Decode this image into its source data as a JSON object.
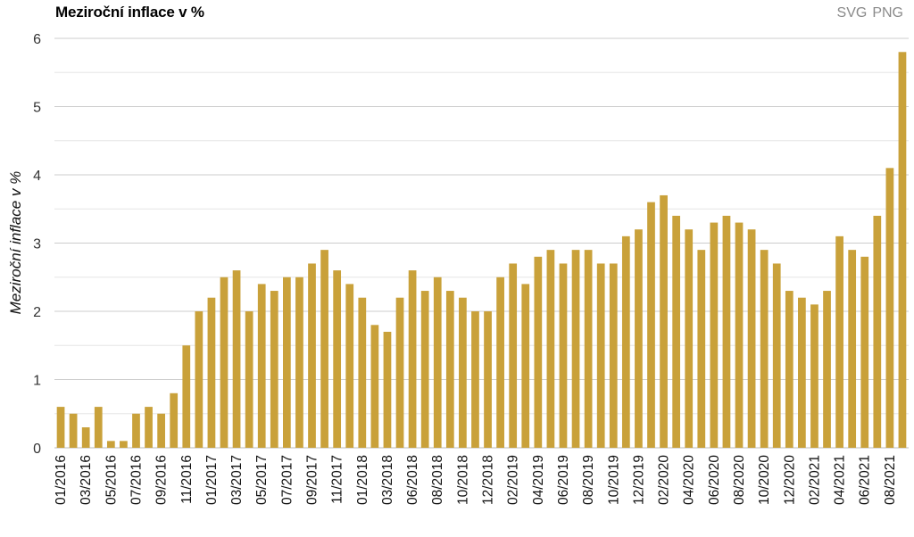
{
  "title": "Meziroční inflace v %",
  "export": {
    "svg_label": "SVG",
    "png_label": "PNG"
  },
  "colors": {
    "bar": "#C9A13A",
    "grid": "#cccccc",
    "minor_grid": "#e6e6e6"
  },
  "chart_data": {
    "type": "bar",
    "ylabel": "Meziroční inflace v %",
    "ylim": [
      0,
      6
    ],
    "yticks": [
      0,
      1,
      2,
      3,
      4,
      5,
      6
    ],
    "grid": true,
    "x_tick_labels": [
      "01/2016",
      "03/2016",
      "05/2016",
      "07/2016",
      "09/2016",
      "11/2016",
      "01/2017",
      "03/2017",
      "05/2017",
      "07/2017",
      "09/2017",
      "11/2017",
      "01/2018",
      "03/2018",
      "06/2018",
      "08/2018",
      "10/2018",
      "12/2018",
      "02/2019",
      "04/2019",
      "06/2019",
      "08/2019",
      "10/2019",
      "12/2019",
      "02/2020",
      "04/2020",
      "06/2020",
      "08/2020",
      "10/2020",
      "12/2020",
      "02/2021",
      "04/2021",
      "06/2021",
      "08/2021"
    ],
    "x_tick_bar_index": [
      0,
      2,
      4,
      6,
      8,
      10,
      12,
      14,
      16,
      18,
      20,
      22,
      24,
      26,
      28,
      30,
      32,
      34,
      36,
      38,
      40,
      42,
      44,
      46,
      48,
      50,
      52,
      54,
      56,
      58,
      60,
      62,
      64,
      66
    ],
    "values": [
      0.6,
      0.5,
      0.3,
      0.6,
      0.1,
      0.1,
      0.5,
      0.6,
      0.5,
      0.8,
      1.5,
      2.0,
      2.2,
      2.5,
      2.6,
      2.0,
      2.4,
      2.3,
      2.5,
      2.5,
      2.7,
      2.9,
      2.6,
      2.4,
      2.2,
      1.8,
      1.7,
      2.2,
      2.6,
      2.3,
      2.5,
      2.3,
      2.2,
      2.0,
      2.0,
      2.5,
      2.7,
      2.4,
      2.8,
      2.9,
      2.7,
      2.9,
      2.9,
      2.7,
      2.7,
      3.1,
      3.2,
      3.6,
      3.7,
      3.4,
      3.2,
      2.9,
      3.3,
      3.4,
      3.3,
      3.2,
      2.9,
      2.7,
      2.3,
      2.2,
      2.1,
      2.3,
      3.1,
      2.9,
      2.8,
      3.4,
      4.1,
      5.8
    ]
  }
}
